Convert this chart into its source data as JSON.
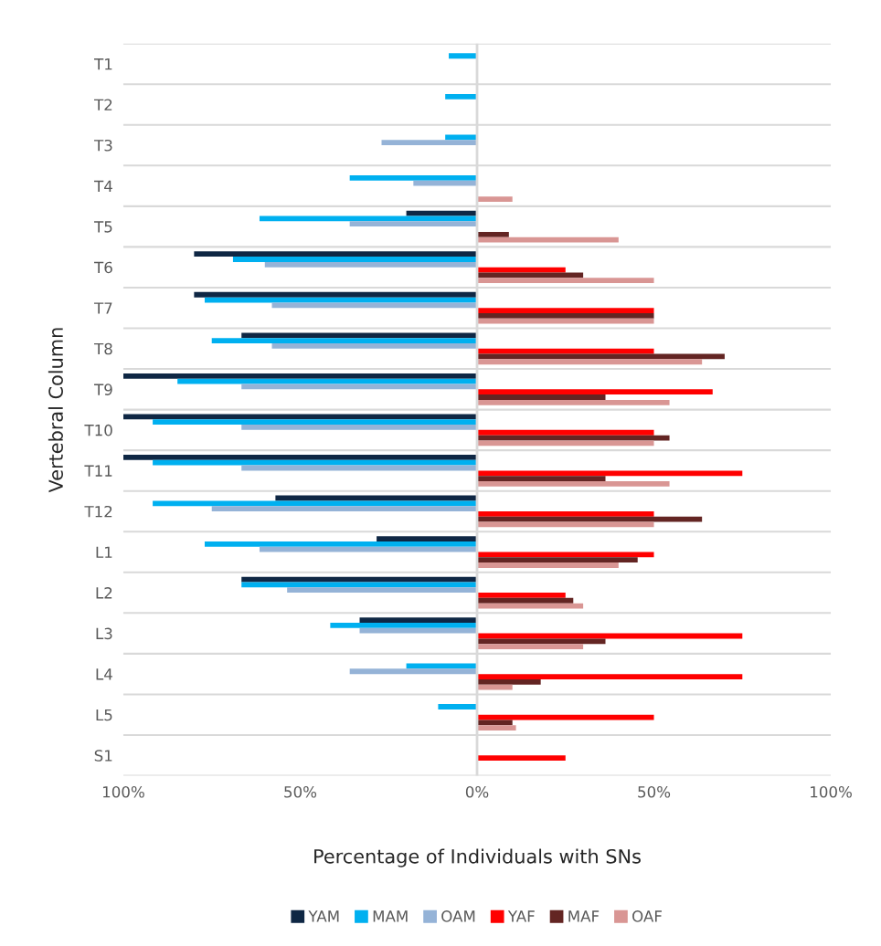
{
  "chart_data": {
    "type": "bar",
    "orientation": "horizontal",
    "xlabel": "Percentage of Individuals with SNs",
    "ylabel": "Vertebral Column",
    "categories": [
      "T1",
      "T2",
      "T3",
      "T4",
      "T5",
      "T6",
      "T7",
      "T8",
      "T9",
      "T10",
      "T11",
      "T12",
      "L1",
      "L2",
      "L3",
      "L4",
      "L5",
      "S1"
    ],
    "series": [
      {
        "name": "YAM",
        "color": "#0f2744",
        "values": [
          null,
          null,
          null,
          null,
          -20,
          -80,
          -80,
          -66.6,
          -100,
          -100,
          -100,
          -57,
          -28.4,
          -66.6,
          -33.2,
          null,
          null,
          null
        ]
      },
      {
        "name": "MAM",
        "color": "#00b0f0",
        "values": [
          -8,
          -9,
          -9,
          -36,
          -61.5,
          -69,
          -77,
          -75,
          -84.7,
          -91.7,
          -91.7,
          -91.7,
          -77,
          -66.6,
          -41.5,
          -20,
          -11,
          null
        ]
      },
      {
        "name": "OAM",
        "color": "#95b3d7",
        "values": [
          null,
          null,
          -27,
          -18,
          -36,
          -60,
          -58,
          -58,
          -66.6,
          -66.6,
          -66.6,
          -75,
          -61.5,
          -53.7,
          -33.2,
          -36,
          null,
          null
        ]
      },
      {
        "name": "YAF",
        "color": "#ff0000",
        "values": [
          null,
          null,
          null,
          null,
          null,
          25,
          50,
          50,
          66.6,
          50,
          75,
          50,
          50,
          25,
          75,
          75,
          50,
          25
        ]
      },
      {
        "name": "MAF",
        "color": "#632523",
        "values": [
          null,
          null,
          null,
          null,
          9,
          30,
          50,
          70,
          36.3,
          54.4,
          36.3,
          63.6,
          45.4,
          27.2,
          36.3,
          18,
          10,
          null
        ]
      },
      {
        "name": "OAF",
        "color": "#d99694",
        "values": [
          null,
          null,
          null,
          10,
          40,
          50,
          50,
          63.6,
          54.4,
          50,
          54.4,
          50,
          40,
          30,
          30,
          10,
          11,
          null
        ]
      }
    ],
    "xlim": [
      -100,
      100
    ],
    "xticks": [
      {
        "value": -100,
        "label": "100%"
      },
      {
        "value": -50,
        "label": "50%"
      },
      {
        "value": 0,
        "label": "0%"
      },
      {
        "value": 50,
        "label": "50%"
      },
      {
        "value": 100,
        "label": "100%"
      }
    ],
    "grid": "y",
    "legend": "bottom"
  }
}
